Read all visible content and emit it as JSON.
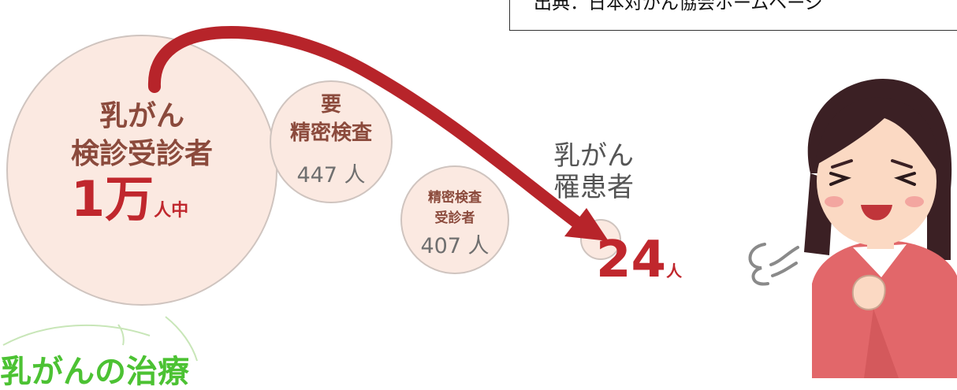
{
  "source": {
    "text": "出典：日本対がん協会ホームページ"
  },
  "screened": {
    "line1": "乳がん",
    "line2": "検診受診者",
    "number": "1万",
    "unit": "人中"
  },
  "needs_exam": {
    "line1": "要",
    "line2": "精密検査",
    "count": "447 人"
  },
  "exam_taken": {
    "line1": "精密検査",
    "line2": "受診者",
    "count": "407 人"
  },
  "patients": {
    "line1": "乳がん",
    "line2": "罹患者",
    "number": "24",
    "unit": "人"
  },
  "section_heading": "乳がんの治療",
  "colors": {
    "circle_fill": "#fbe9e1",
    "label_brown": "#8b4a3c",
    "accent_red": "#c0272d",
    "heading_green": "#4cc233",
    "shirt_pink": "#e2676a"
  }
}
